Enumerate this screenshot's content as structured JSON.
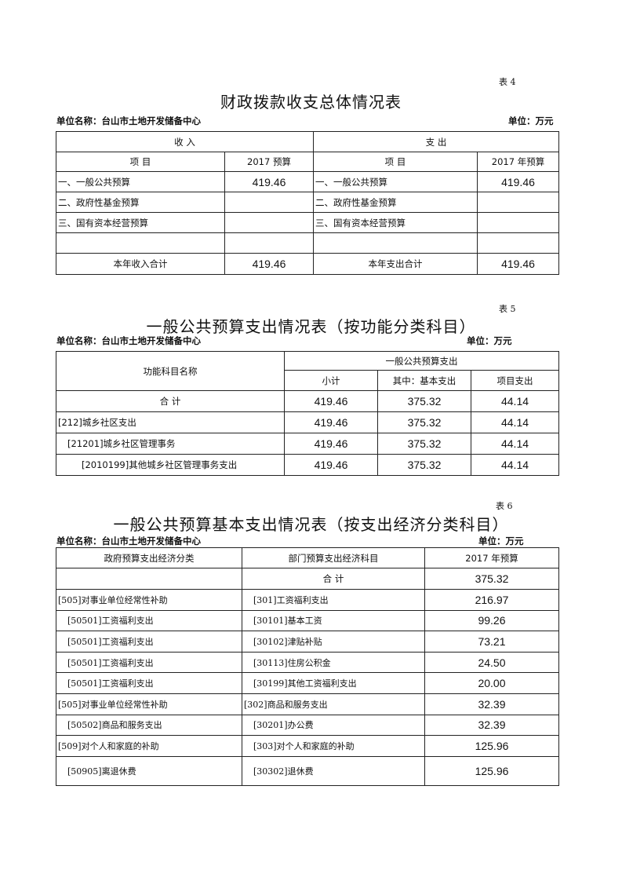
{
  "unit_name": "单位名称：台山市土地开发储备中心",
  "unit": "单位：万元",
  "t4": {
    "no": "表 4",
    "title": "财政拨款收支总体情况表",
    "income": "收 入",
    "expense": "支 出",
    "item": "项 目",
    "income_year": "2017 预算",
    "expense_year": "2017 年预算",
    "rows": [
      {
        "in_item": "一、一般公共预算",
        "in_val": "419.46",
        "out_item": "一、一般公共预算",
        "out_val": "419.46"
      },
      {
        "in_item": "二、政府性基金预算",
        "in_val": "",
        "out_item": "二、政府性基金预算",
        "out_val": ""
      },
      {
        "in_item": "三、国有资本经营预算",
        "in_val": "",
        "out_item": "三、国有资本经营预算",
        "out_val": ""
      },
      {
        "in_item": "",
        "in_val": "",
        "out_item": "",
        "out_val": ""
      }
    ],
    "total": {
      "in_item": "本年收入合计",
      "in_val": "419.46",
      "out_item": "本年支出合计",
      "out_val": "419.46"
    }
  },
  "t5": {
    "no": "表 5",
    "title": "一般公共预算支出情况表（按功能分类科目）",
    "col_name": "功能科目名称",
    "group": "一般公共预算支出",
    "sub": "小计",
    "basic": "其中：基本支出",
    "project": "项目支出",
    "rows": [
      {
        "name": "合 计",
        "sub": "419.46",
        "basic": "375.32",
        "project": "44.14"
      },
      {
        "name": "[212]城乡社区支出",
        "sub": "419.46",
        "basic": "375.32",
        "project": "44.14"
      },
      {
        "name": "[21201]城乡社区管理事务",
        "sub": "419.46",
        "basic": "375.32",
        "project": "44.14"
      },
      {
        "name": "[2010199]其他城乡社区管理事务支出",
        "sub": "419.46",
        "basic": "375.32",
        "project": "44.14"
      }
    ]
  },
  "t6": {
    "no": "表 6",
    "title": "一般公共预算基本支出情况表（按支出经济分类科目）",
    "h1": "政府预算支出经济分类",
    "h2": "部门预算支出经济科目",
    "h3": "2017 年预算",
    "total_label": "合 计",
    "total": "375.32",
    "rows": [
      {
        "gov": "[505]对事业单位经常性补助",
        "dept": "[301]工资福利支出",
        "val": "216.97"
      },
      {
        "gov": "[50501]工资福利支出",
        "dept": "[30101]基本工资",
        "val": "99.26"
      },
      {
        "gov": "[50501]工资福利支出",
        "dept": "[30102]津贴补贴",
        "val": "73.21"
      },
      {
        "gov": "[50501]工资福利支出",
        "dept": "[30113]住房公积金",
        "val": "24.50"
      },
      {
        "gov": "[50501]工资福利支出",
        "dept": "[30199]其他工资福利支出",
        "val": "20.00"
      },
      {
        "gov": "[505]对事业单位经常性补助",
        "dept": "[302]商品和服务支出",
        "val": "32.39"
      },
      {
        "gov": "[50502]商品和服务支出",
        "dept": "[30201]办公费",
        "val": "32.39"
      },
      {
        "gov": "[509]对个人和家庭的补助",
        "dept": "[303]对个人和家庭的补助",
        "val": "125.96"
      },
      {
        "gov": "[50905]离退休费",
        "dept": "[30302]退休费",
        "val": "125.96"
      }
    ]
  }
}
